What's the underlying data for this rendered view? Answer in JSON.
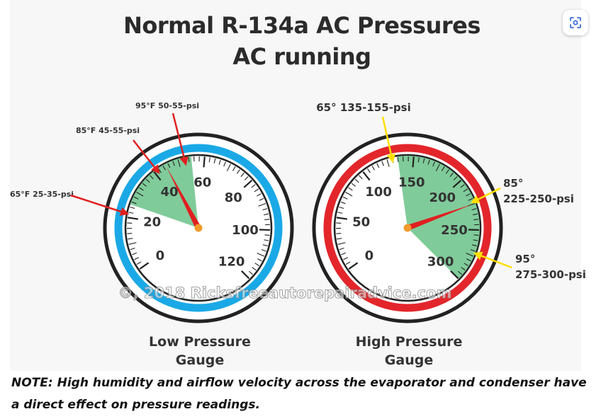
{
  "title": {
    "line1": "Normal R-134a AC Pressures",
    "line2": "AC running"
  },
  "watermark": "©, 2018 Ricksfreeautorepairadvice.com",
  "lens_button": {
    "icon": "lens-icon"
  },
  "low_gauge": {
    "caption_line1": "Low Pressure",
    "caption_line2": "Gauge",
    "ring_color": "#1aa9e6",
    "tick_labels": [
      "0",
      "20",
      "40",
      "60",
      "80",
      "100",
      "120"
    ],
    "pointer_value": 45,
    "normal_range": [
      25,
      55
    ],
    "callouts": [
      {
        "text": "95°F 50-55-psi",
        "value": 55
      },
      {
        "text": "85°F 45-55-psi",
        "value": 45
      },
      {
        "text": "65°F 25-35-psi",
        "value": 25
      }
    ]
  },
  "high_gauge": {
    "caption_line1": "High Pressure",
    "caption_line2": "Gauge",
    "ring_color": "#e3262b",
    "tick_labels": [
      "0",
      "50",
      "100",
      "150",
      "200",
      "250",
      "300"
    ],
    "pointer_value": 225,
    "normal_range": [
      135,
      300
    ],
    "callouts": [
      {
        "line1": "65° 135-155-psi",
        "line2": ""
      },
      {
        "line1": "85°",
        "line2": "225-250-psi"
      },
      {
        "line1": "95°",
        "line2": "275-300-psi"
      }
    ]
  },
  "note": "NOTE: High humidity and airflow velocity across the evaporator and condenser have a direct effect on pressure readings.",
  "colors": {
    "range_fill": "#72c58f",
    "pointer": "#e02020",
    "hub": "#f39a2c",
    "low_arrow": "#e02020",
    "high_arrow": "#ffe000"
  }
}
